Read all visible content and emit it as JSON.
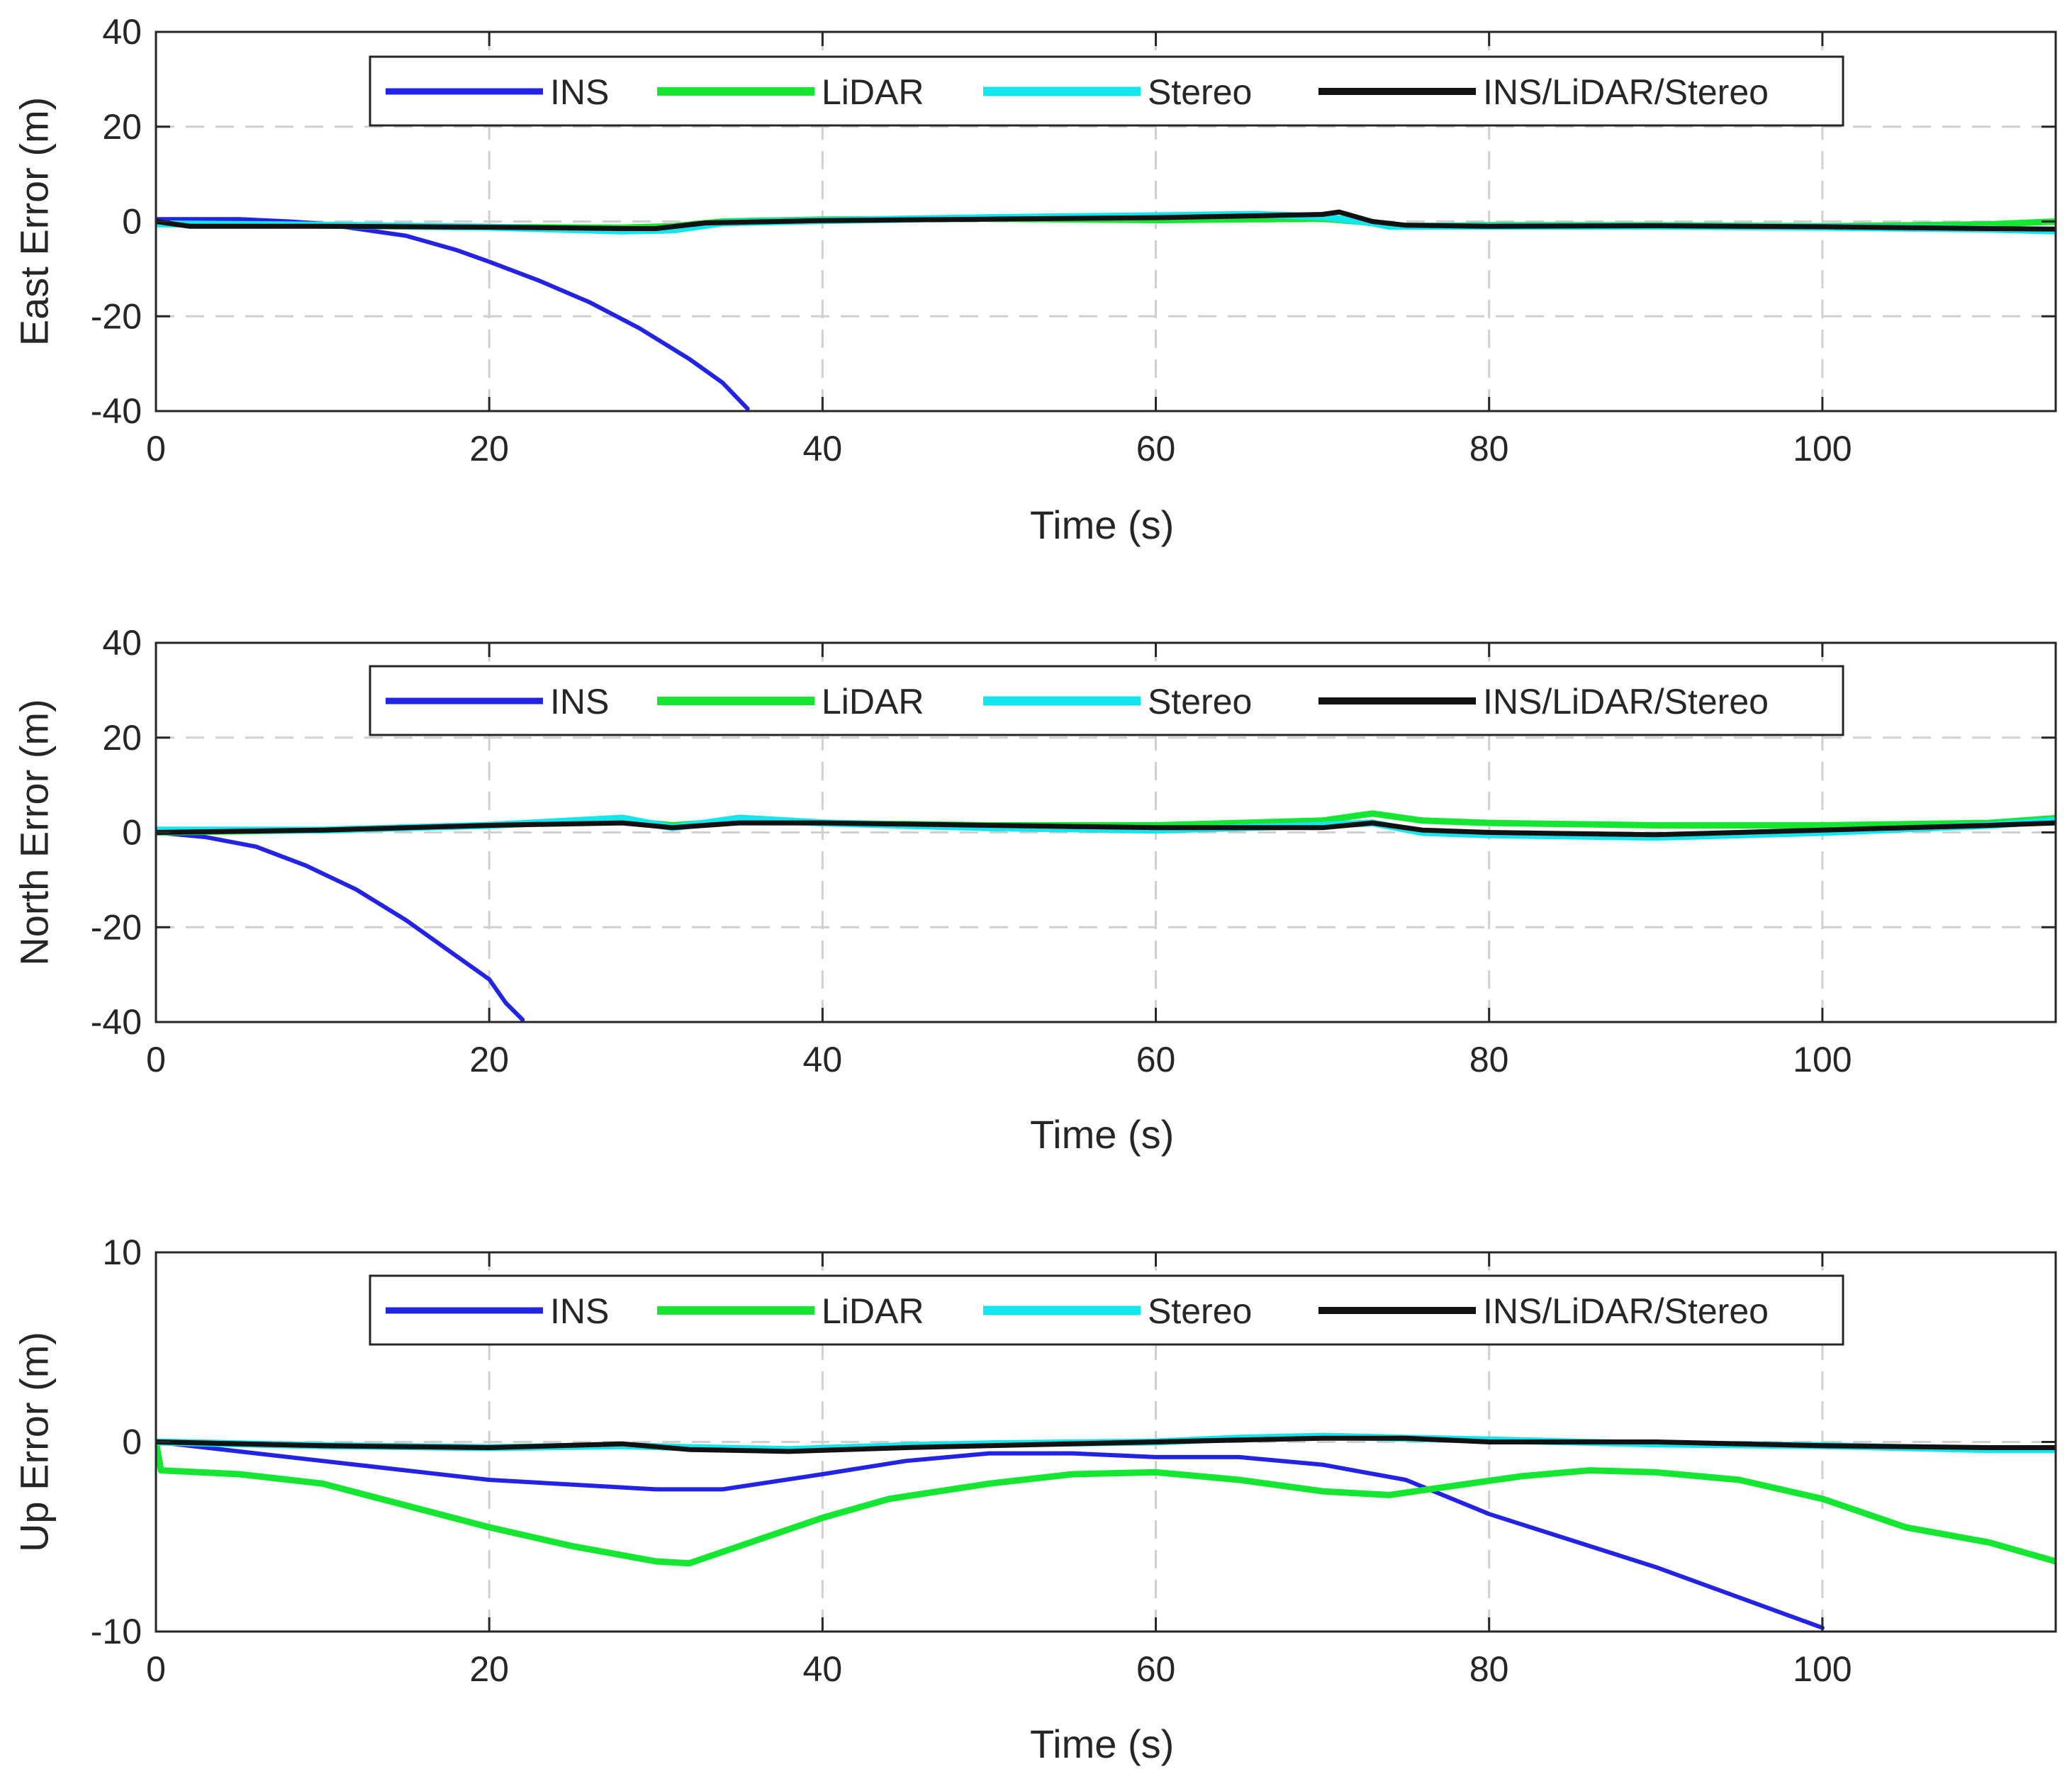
{
  "colors": {
    "ins": "#2323e6",
    "lidar": "#14e632",
    "stereo": "#14e6ee",
    "fused": "#111111",
    "grid": "#d0d0d0",
    "axis": "#262626"
  },
  "chart_data": [
    {
      "type": "line",
      "title": "",
      "xlabel": "Time (s)",
      "ylabel": "East Error (m)",
      "xlim": [
        0,
        114
      ],
      "ylim": [
        -40,
        40
      ],
      "xticks": [
        0,
        20,
        40,
        60,
        80,
        100
      ],
      "yticks": [
        -40,
        -20,
        0,
        20,
        40
      ],
      "x_tick_labels": [
        "0",
        "20",
        "40",
        "60",
        "80",
        "100"
      ],
      "y_tick_labels": [
        "-40",
        "-20",
        "0",
        "20",
        "40"
      ],
      "grid": true,
      "legend": "top-center",
      "series": [
        {
          "name": "INS",
          "color_key": "ins",
          "points": [
            [
              0,
              0.5
            ],
            [
              5,
              0.5
            ],
            [
              8,
              0
            ],
            [
              10,
              -0.5
            ],
            [
              12,
              -1.5
            ],
            [
              15,
              -3
            ],
            [
              18,
              -6
            ],
            [
              20,
              -8.5
            ],
            [
              23,
              -12.5
            ],
            [
              26,
              -17
            ],
            [
              29,
              -22.5
            ],
            [
              32,
              -29
            ],
            [
              34,
              -34
            ],
            [
              35.5,
              -39.5
            ]
          ]
        },
        {
          "name": "LiDAR",
          "color_key": "lidar",
          "points": [
            [
              0,
              -0.5
            ],
            [
              10,
              -0.8
            ],
            [
              20,
              -1.2
            ],
            [
              28,
              -1.3
            ],
            [
              31,
              -1
            ],
            [
              34,
              0
            ],
            [
              40,
              0.4
            ],
            [
              50,
              0.6
            ],
            [
              60,
              0.3
            ],
            [
              70,
              0.6
            ],
            [
              73,
              -0.3
            ],
            [
              74,
              -1
            ],
            [
              80,
              -0.8
            ],
            [
              90,
              -0.8
            ],
            [
              100,
              -1
            ],
            [
              110,
              -0.6
            ],
            [
              114,
              0
            ]
          ]
        },
        {
          "name": "Stereo",
          "color_key": "stereo",
          "points": [
            [
              0,
              -0.5
            ],
            [
              10,
              -0.8
            ],
            [
              20,
              -1.2
            ],
            [
              28,
              -2
            ],
            [
              31,
              -1.8
            ],
            [
              34,
              -0.3
            ],
            [
              40,
              0.2
            ],
            [
              50,
              0.8
            ],
            [
              60,
              1.2
            ],
            [
              66,
              1.5
            ],
            [
              70,
              1
            ],
            [
              73,
              -0.3
            ],
            [
              74,
              -1
            ],
            [
              80,
              -1
            ],
            [
              90,
              -1
            ],
            [
              100,
              -1.2
            ],
            [
              110,
              -1.6
            ],
            [
              114,
              -2
            ]
          ]
        },
        {
          "name": "INS/LiDAR/Stereo",
          "color_key": "fused",
          "points": [
            [
              0,
              0
            ],
            [
              2,
              -1
            ],
            [
              10,
              -1
            ],
            [
              20,
              -1.2
            ],
            [
              28,
              -1.5
            ],
            [
              30,
              -1.5
            ],
            [
              33,
              -0.3
            ],
            [
              40,
              0.2
            ],
            [
              50,
              0.5
            ],
            [
              60,
              0.8
            ],
            [
              66,
              1.2
            ],
            [
              70,
              1.5
            ],
            [
              71,
              2
            ],
            [
              73,
              0
            ],
            [
              75,
              -0.8
            ],
            [
              80,
              -1
            ],
            [
              90,
              -0.9
            ],
            [
              100,
              -1.1
            ],
            [
              110,
              -1.5
            ],
            [
              114,
              -1.6
            ]
          ]
        }
      ]
    },
    {
      "type": "line",
      "title": "",
      "xlabel": "Time (s)",
      "ylabel": "North Error (m)",
      "xlim": [
        0,
        114
      ],
      "ylim": [
        -40,
        40
      ],
      "xticks": [
        0,
        20,
        40,
        60,
        80,
        100
      ],
      "yticks": [
        -40,
        -20,
        0,
        20,
        40
      ],
      "x_tick_labels": [
        "0",
        "20",
        "40",
        "60",
        "80",
        "100"
      ],
      "y_tick_labels": [
        "-40",
        "-20",
        "0",
        "20",
        "40"
      ],
      "grid": true,
      "legend": "top-center",
      "series": [
        {
          "name": "INS",
          "color_key": "ins",
          "points": [
            [
              0,
              0
            ],
            [
              3,
              -1
            ],
            [
              6,
              -3
            ],
            [
              9,
              -7
            ],
            [
              12,
              -12
            ],
            [
              15,
              -18.5
            ],
            [
              18,
              -26
            ],
            [
              20,
              -31
            ],
            [
              21,
              -36
            ],
            [
              22,
              -39.5
            ]
          ]
        },
        {
          "name": "LiDAR",
          "color_key": "lidar",
          "points": [
            [
              0,
              0
            ],
            [
              10,
              0.5
            ],
            [
              20,
              1.5
            ],
            [
              28,
              2.5
            ],
            [
              31,
              1.5
            ],
            [
              35,
              2.5
            ],
            [
              40,
              2
            ],
            [
              50,
              1.5
            ],
            [
              60,
              1.5
            ],
            [
              70,
              2.5
            ],
            [
              73,
              4
            ],
            [
              76,
              2.5
            ],
            [
              80,
              2
            ],
            [
              90,
              1.5
            ],
            [
              100,
              1.5
            ],
            [
              110,
              2
            ],
            [
              114,
              3
            ]
          ]
        },
        {
          "name": "Stereo",
          "color_key": "stereo",
          "points": [
            [
              0,
              0.5
            ],
            [
              10,
              0.5
            ],
            [
              20,
              1.5
            ],
            [
              28,
              3
            ],
            [
              31,
              1
            ],
            [
              35,
              3
            ],
            [
              40,
              2
            ],
            [
              50,
              1
            ],
            [
              60,
              0.5
            ],
            [
              70,
              1.5
            ],
            [
              73,
              2
            ],
            [
              76,
              0
            ],
            [
              80,
              -0.5
            ],
            [
              90,
              -1
            ],
            [
              100,
              0
            ],
            [
              110,
              1.5
            ],
            [
              114,
              2.5
            ]
          ]
        },
        {
          "name": "INS/LiDAR/Stereo",
          "color_key": "fused",
          "points": [
            [
              0,
              0
            ],
            [
              10,
              0.5
            ],
            [
              20,
              1.5
            ],
            [
              28,
              2
            ],
            [
              31,
              1
            ],
            [
              35,
              2
            ],
            [
              40,
              2
            ],
            [
              50,
              1.5
            ],
            [
              60,
              1
            ],
            [
              70,
              1
            ],
            [
              73,
              2
            ],
            [
              76,
              0.5
            ],
            [
              80,
              0
            ],
            [
              90,
              -0.5
            ],
            [
              100,
              0.5
            ],
            [
              110,
              1.5
            ],
            [
              114,
              2
            ]
          ]
        }
      ]
    },
    {
      "type": "line",
      "title": "",
      "xlabel": "Time (s)",
      "ylabel": "Up Error (m)",
      "xlim": [
        0,
        114
      ],
      "ylim": [
        -10,
        10
      ],
      "xticks": [
        0,
        20,
        40,
        60,
        80,
        100
      ],
      "yticks": [
        -10,
        0,
        10
      ],
      "x_tick_labels": [
        "0",
        "20",
        "40",
        "60",
        "80",
        "100"
      ],
      "y_tick_labels": [
        "-10",
        "0",
        "10"
      ],
      "grid": true,
      "legend": "top-center",
      "series": [
        {
          "name": "INS",
          "color_key": "ins",
          "points": [
            [
              0,
              0
            ],
            [
              5,
              -0.5
            ],
            [
              10,
              -1
            ],
            [
              20,
              -2
            ],
            [
              30,
              -2.5
            ],
            [
              34,
              -2.5
            ],
            [
              40,
              -1.7
            ],
            [
              45,
              -1
            ],
            [
              50,
              -0.6
            ],
            [
              55,
              -0.6
            ],
            [
              60,
              -0.8
            ],
            [
              65,
              -0.8
            ],
            [
              70,
              -1.2
            ],
            [
              75,
              -2
            ],
            [
              80,
              -3.8
            ],
            [
              90,
              -6.6
            ],
            [
              100,
              -9.8
            ]
          ]
        },
        {
          "name": "LiDAR",
          "color_key": "lidar",
          "points": [
            [
              0,
              0
            ],
            [
              0.3,
              -1.5
            ],
            [
              5,
              -1.7
            ],
            [
              10,
              -2.2
            ],
            [
              20,
              -4.5
            ],
            [
              25,
              -5.5
            ],
            [
              30,
              -6.3
            ],
            [
              32,
              -6.4
            ],
            [
              35,
              -5.5
            ],
            [
              40,
              -4
            ],
            [
              44,
              -3
            ],
            [
              50,
              -2.2
            ],
            [
              55,
              -1.7
            ],
            [
              60,
              -1.6
            ],
            [
              65,
              -2
            ],
            [
              70,
              -2.6
            ],
            [
              74,
              -2.8
            ],
            [
              78,
              -2.3
            ],
            [
              82,
              -1.8
            ],
            [
              86,
              -1.5
            ],
            [
              90,
              -1.6
            ],
            [
              95,
              -2
            ],
            [
              100,
              -3
            ],
            [
              105,
              -4.5
            ],
            [
              110,
              -5.3
            ],
            [
              114,
              -6.3
            ]
          ]
        },
        {
          "name": "Stereo",
          "color_key": "stereo",
          "points": [
            [
              0,
              0
            ],
            [
              10,
              -0.2
            ],
            [
              20,
              -0.3
            ],
            [
              28,
              -0.2
            ],
            [
              32,
              -0.3
            ],
            [
              38,
              -0.4
            ],
            [
              45,
              -0.2
            ],
            [
              50,
              -0.1
            ],
            [
              60,
              0
            ],
            [
              65,
              0.2
            ],
            [
              70,
              0.3
            ],
            [
              75,
              0.2
            ],
            [
              80,
              0.1
            ],
            [
              90,
              -0.1
            ],
            [
              100,
              -0.2
            ],
            [
              110,
              -0.4
            ],
            [
              114,
              -0.4
            ]
          ]
        },
        {
          "name": "INS/LiDAR/Stereo",
          "color_key": "fused",
          "points": [
            [
              0,
              0
            ],
            [
              10,
              -0.2
            ],
            [
              20,
              -0.3
            ],
            [
              28,
              -0.1
            ],
            [
              32,
              -0.4
            ],
            [
              38,
              -0.5
            ],
            [
              45,
              -0.3
            ],
            [
              50,
              -0.2
            ],
            [
              60,
              0
            ],
            [
              65,
              0.1
            ],
            [
              70,
              0.2
            ],
            [
              75,
              0.2
            ],
            [
              80,
              0
            ],
            [
              90,
              0
            ],
            [
              100,
              -0.2
            ],
            [
              110,
              -0.3
            ],
            [
              114,
              -0.3
            ]
          ]
        }
      ]
    }
  ]
}
